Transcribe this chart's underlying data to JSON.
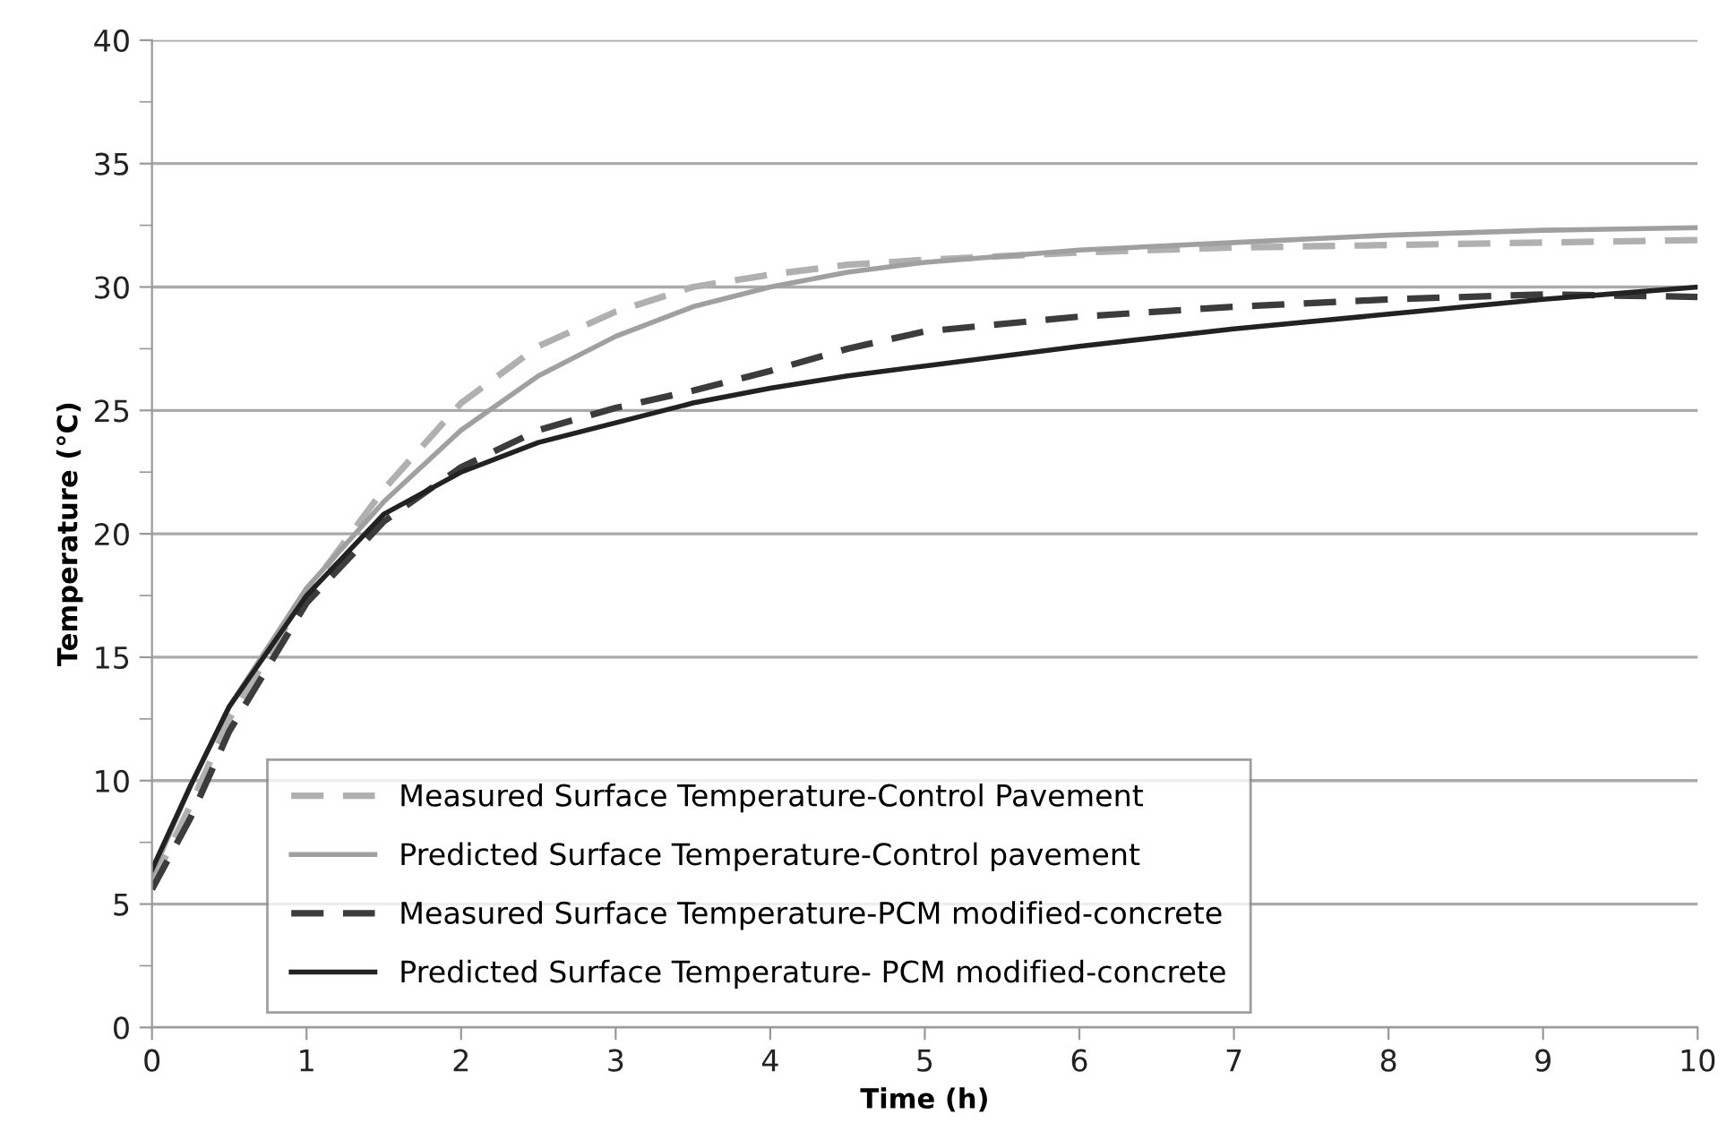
{
  "chart_data": {
    "type": "line",
    "xlabel": "Time (h)",
    "ylabel": "Temperature (°C)",
    "xlim": [
      0,
      10
    ],
    "xticks": [
      0,
      1,
      2,
      3,
      4,
      5,
      6,
      7,
      8,
      9,
      10
    ],
    "ylim": [
      0,
      40
    ],
    "yticks": [
      0,
      {
        "value": 2.5,
        "label": null
      },
      5,
      {
        "value": 7.5,
        "label": null
      },
      10,
      {
        "value": 12.5,
        "label": null
      },
      15,
      {
        "value": 17.5,
        "label": null
      },
      20,
      {
        "value": 22.5,
        "label": null
      },
      25,
      {
        "value": 27.5,
        "label": null
      },
      30,
      {
        "value": 32.5,
        "label": null
      },
      35,
      {
        "value": 37.5,
        "label": null
      },
      40
    ],
    "grid": "y",
    "legend": "bottom left",
    "marker": "none",
    "x": [
      0,
      0.25,
      0.5,
      1,
      1.5,
      2,
      2.5,
      3,
      3.5,
      4,
      4.5,
      5,
      6,
      7,
      8,
      9,
      10
    ],
    "series": [
      {
        "name": "Measured Surface Temperature-Control Pavement",
        "color": "#b0b0b0",
        "line_style": "dashed",
        "values": [
          5.8,
          9.0,
          12.5,
          17.6,
          21.8,
          25.3,
          27.6,
          29.0,
          30.0,
          30.5,
          30.9,
          31.1,
          31.4,
          31.6,
          31.7,
          31.8,
          31.9
        ]
      },
      {
        "name": "Predicted Surface Temperature-Control pavement",
        "color": "#a0a0a0",
        "line_style": "solid",
        "values": [
          6.2,
          9.8,
          13.0,
          17.8,
          21.3,
          24.2,
          26.4,
          28.0,
          29.2,
          30.0,
          30.6,
          31.0,
          31.5,
          31.8,
          32.1,
          32.3,
          32.4
        ]
      },
      {
        "name": "Measured Surface Temperature-PCM modified-concrete",
        "color": "#3c3c3c",
        "line_style": "dashed",
        "values": [
          5.6,
          8.5,
          12.0,
          17.2,
          20.5,
          22.7,
          24.2,
          25.1,
          25.8,
          26.6,
          27.5,
          28.2,
          28.8,
          29.2,
          29.5,
          29.7,
          29.6
        ]
      },
      {
        "name": "Predicted Surface Temperature- PCM modified-concrete",
        "color": "#222222",
        "line_style": "solid",
        "values": [
          6.4,
          9.8,
          13.0,
          17.5,
          20.8,
          22.5,
          23.7,
          24.5,
          25.3,
          25.9,
          26.4,
          26.8,
          27.6,
          28.3,
          28.9,
          29.5,
          30.0
        ]
      }
    ]
  }
}
